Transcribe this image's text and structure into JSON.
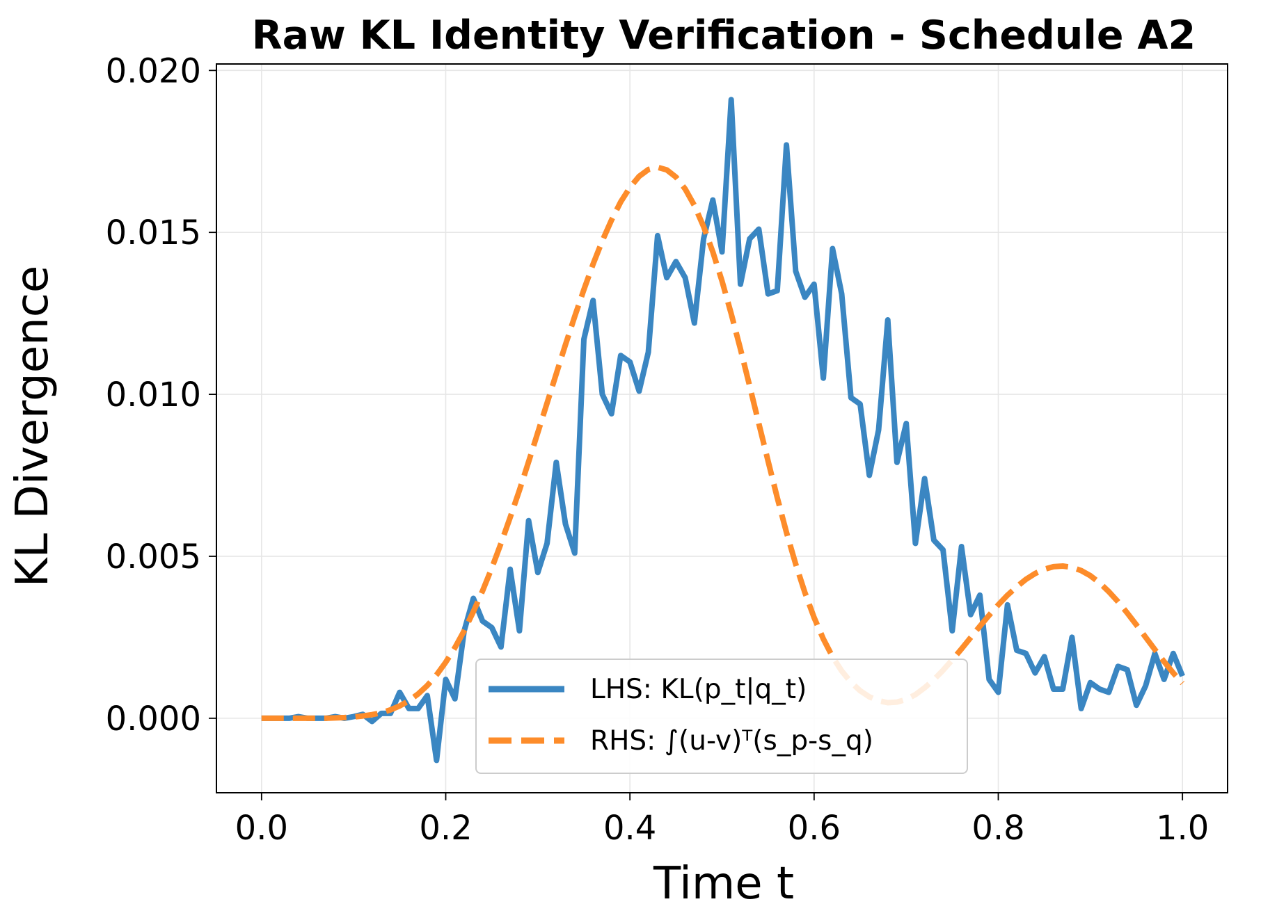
{
  "chart_data": {
    "type": "line",
    "title": "Raw KL Identity Verification - Schedule A2",
    "xlabel": "Time t",
    "ylabel": "KL Divergence",
    "xlim": [
      -0.049,
      1.049
    ],
    "ylim": [
      -0.0023,
      0.0202
    ],
    "xticks": [
      0.0,
      0.2,
      0.4,
      0.6,
      0.8,
      1.0
    ],
    "xtick_labels": [
      "0.0",
      "0.2",
      "0.4",
      "0.6",
      "0.8",
      "1.0"
    ],
    "yticks": [
      0.0,
      0.005,
      0.01,
      0.015,
      0.02
    ],
    "ytick_labels": [
      "0.000",
      "0.005",
      "0.010",
      "0.015",
      "0.020"
    ],
    "grid": true,
    "legend_position": "lower center",
    "x": [
      0.0,
      0.01,
      0.02,
      0.03,
      0.04,
      0.05,
      0.06,
      0.07,
      0.08,
      0.09,
      0.1,
      0.11,
      0.12,
      0.13,
      0.14,
      0.15,
      0.16,
      0.17,
      0.18,
      0.19,
      0.2,
      0.21,
      0.22,
      0.23,
      0.24,
      0.25,
      0.26,
      0.27,
      0.28,
      0.29,
      0.3,
      0.31,
      0.32,
      0.33,
      0.34,
      0.35,
      0.36,
      0.37,
      0.38,
      0.39,
      0.4,
      0.41,
      0.42,
      0.43,
      0.44,
      0.45,
      0.46,
      0.47,
      0.48,
      0.49,
      0.5,
      0.51,
      0.52,
      0.53,
      0.54,
      0.55,
      0.56,
      0.57,
      0.58,
      0.59,
      0.6,
      0.61,
      0.62,
      0.63,
      0.64,
      0.65,
      0.66,
      0.67,
      0.68,
      0.69,
      0.7,
      0.71,
      0.72,
      0.73,
      0.74,
      0.75,
      0.76,
      0.77,
      0.78,
      0.79,
      0.8,
      0.81,
      0.82,
      0.83,
      0.84,
      0.85,
      0.86,
      0.87,
      0.88,
      0.89,
      0.9,
      0.91,
      0.92,
      0.93,
      0.94,
      0.95,
      0.96,
      0.97,
      0.98,
      0.99,
      1.0
    ],
    "series": [
      {
        "name": "LHS: KL(p_t|q_t)",
        "color": "#3a86c2",
        "style": "solid",
        "values": [
          0.0,
          0.0,
          0.0,
          0.0,
          5e-05,
          0.0,
          0.0,
          0.0,
          5e-05,
          0.0,
          5e-05,
          0.00012,
          -0.0001,
          0.00015,
          0.00015,
          0.0008,
          0.0003,
          0.0003,
          0.0007,
          -0.0013,
          0.0012,
          0.0006,
          0.0027,
          0.0037,
          0.003,
          0.0028,
          0.0022,
          0.0046,
          0.0027,
          0.0061,
          0.0045,
          0.0054,
          0.0079,
          0.006,
          0.0051,
          0.0117,
          0.0129,
          0.01,
          0.0094,
          0.0112,
          0.011,
          0.0101,
          0.0113,
          0.0149,
          0.0136,
          0.0141,
          0.0136,
          0.0122,
          0.0148,
          0.016,
          0.0144,
          0.0191,
          0.0134,
          0.0148,
          0.0151,
          0.0131,
          0.0132,
          0.0177,
          0.0138,
          0.013,
          0.0134,
          0.0105,
          0.0145,
          0.0131,
          0.0099,
          0.0097,
          0.0075,
          0.0089,
          0.0123,
          0.0079,
          0.0091,
          0.0054,
          0.0074,
          0.0055,
          0.0052,
          0.0027,
          0.0053,
          0.0032,
          0.0038,
          0.0012,
          0.0008,
          0.0035,
          0.0021,
          0.002,
          0.0014,
          0.0019,
          0.0009,
          0.0009,
          0.0025,
          0.0003,
          0.0011,
          0.0009,
          0.0008,
          0.0016,
          0.0015,
          0.0004,
          0.001,
          0.002,
          0.0012,
          0.002,
          0.0013
        ]
      },
      {
        "name": "RHS: ∫(u-v)ᵀ(s_p-s_q)",
        "color": "#fd8c2a",
        "style": "dashed",
        "values": [
          0.0,
          0.0,
          0.0,
          0.0,
          0.0,
          0.0,
          0.0,
          0.0,
          1e-05,
          2e-05,
          4e-05,
          7e-05,
          0.00011,
          0.00017,
          0.00026,
          0.00038,
          0.00054,
          0.00075,
          0.00101,
          0.00134,
          0.00173,
          0.00218,
          0.0027,
          0.00329,
          0.00393,
          0.00464,
          0.0054,
          0.0062,
          0.00704,
          0.00792,
          0.00882,
          0.00973,
          0.01063,
          0.01153,
          0.0124,
          0.01323,
          0.01402,
          0.01474,
          0.01538,
          0.01594,
          0.01639,
          0.01673,
          0.01694,
          0.01701,
          0.01693,
          0.01671,
          0.01634,
          0.01583,
          0.01518,
          0.0144,
          0.0135,
          0.01249,
          0.0114,
          0.01026,
          0.0091,
          0.00794,
          0.00681,
          0.00574,
          0.00476,
          0.00388,
          0.00311,
          0.00245,
          0.0019,
          0.00146,
          0.00111,
          0.00085,
          0.00066,
          0.00054,
          0.00048,
          0.0005,
          0.00058,
          0.00073,
          0.00094,
          0.00119,
          0.00148,
          0.0018,
          0.00214,
          0.00249,
          0.00284,
          0.00318,
          0.0035,
          0.0038,
          0.00406,
          0.00429,
          0.00447,
          0.0046,
          0.00468,
          0.0047,
          0.00466,
          0.00456,
          0.0044,
          0.00418,
          0.00391,
          0.0036,
          0.00325,
          0.00288,
          0.0025,
          0.00212,
          0.00175,
          0.0014,
          0.00108
        ]
      }
    ]
  }
}
